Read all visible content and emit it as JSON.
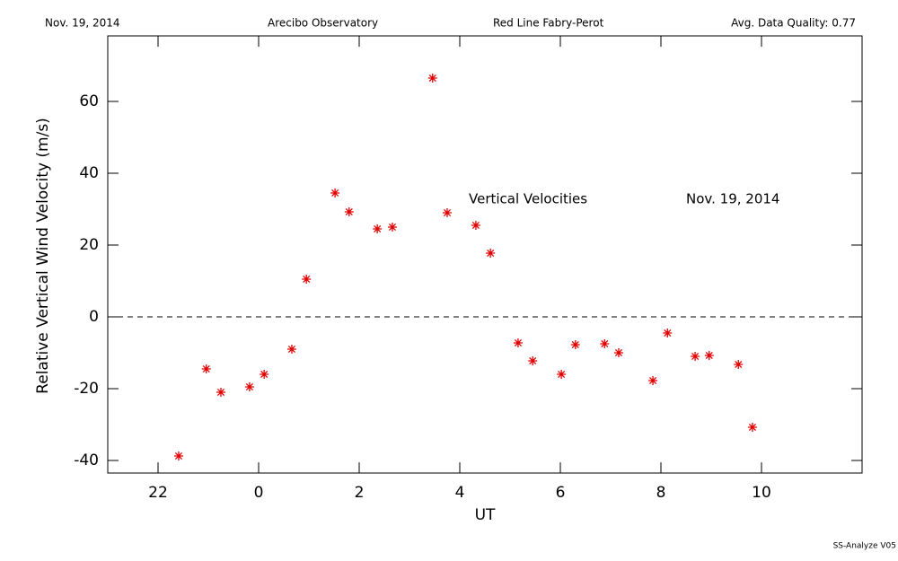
{
  "chart_data": {
    "type": "scatter",
    "header": [
      "Nov. 19, 2014",
      "Arecibo Observatory",
      "Red Line Fabry-Perot",
      "Avg. Data Quality: 0.77"
    ],
    "annotations": [
      "Vertical Velocities",
      "Nov. 19, 2014"
    ],
    "footer": "SS-Analyze V05",
    "x_label": "UT",
    "y_label": "Relative Vertical Wind Velocity (m/s)",
    "color": "#e00000",
    "reference_line": 0,
    "xlim": [
      -3,
      12
    ],
    "ylim": [
      -43.5,
      78.25
    ],
    "xticks": [
      {
        "value": -2,
        "label": "22"
      },
      0,
      2,
      4,
      6,
      8,
      10
    ],
    "yticks": [
      -40,
      -20,
      0,
      20,
      40,
      60
    ],
    "x": [
      -1.59,
      -1.04,
      -0.75,
      -0.18,
      0.11,
      0.66,
      0.95,
      1.52,
      1.8,
      2.36,
      2.66,
      3.46,
      3.75,
      4.32,
      4.61,
      5.16,
      5.45,
      6.02,
      6.3,
      6.88,
      7.16,
      7.84,
      8.13,
      8.68,
      8.96,
      9.54,
      9.82
    ],
    "values": [
      -38.75,
      -14.5,
      -21,
      -19.5,
      -16,
      -9,
      10.5,
      34.5,
      29.25,
      24.5,
      25,
      66.5,
      29,
      25.5,
      17.75,
      -7.25,
      -12.25,
      -16,
      -7.75,
      -7.5,
      -10,
      -17.75,
      -4.5,
      -11,
      -10.75,
      -13.25,
      -30.75
    ]
  }
}
